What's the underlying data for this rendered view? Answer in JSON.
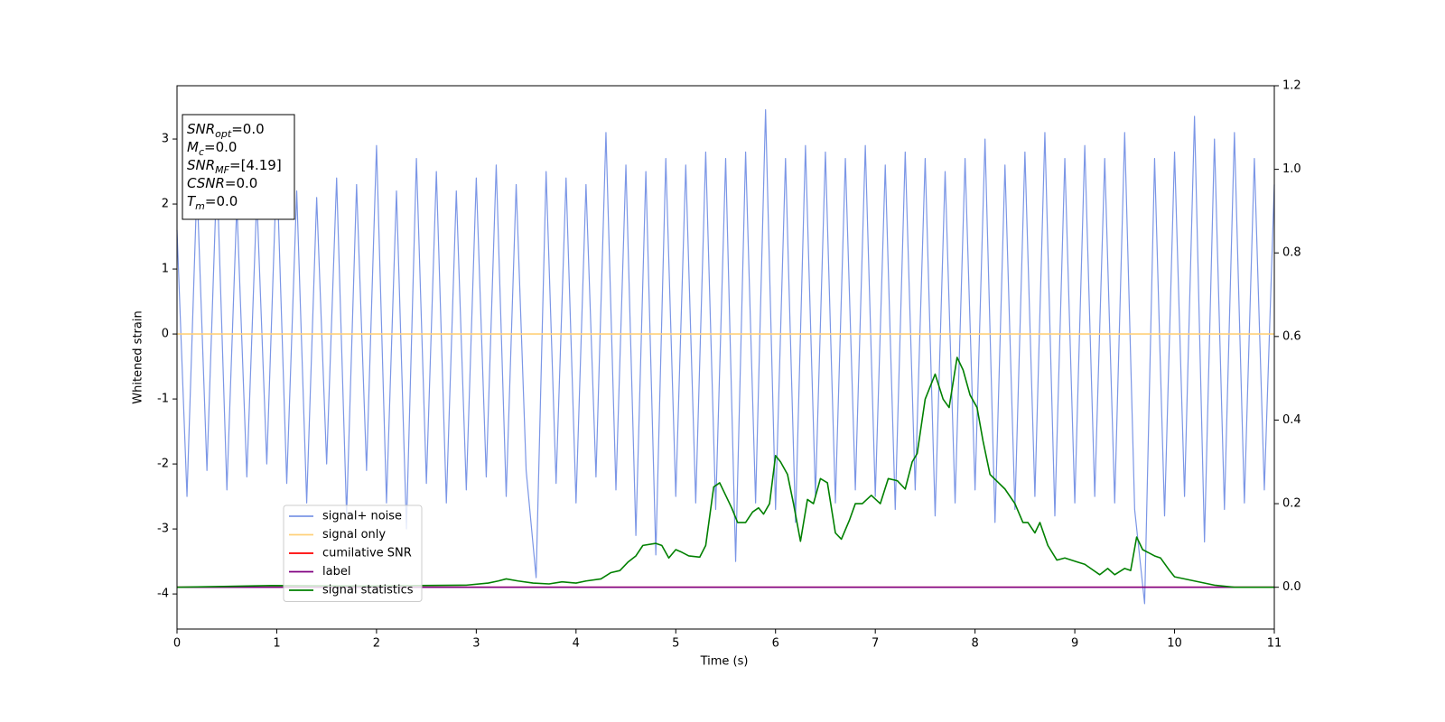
{
  "chart_data": {
    "type": "line",
    "xlabel": "Time (s)",
    "ylabel": "Whitened strain",
    "xlim": [
      0,
      11
    ],
    "xticks": [
      0,
      1,
      2,
      3,
      4,
      5,
      6,
      7,
      8,
      9,
      10,
      11
    ],
    "ylim": [
      -4.54,
      3.82
    ],
    "yticks": [
      -4,
      -3,
      -2,
      -1,
      0,
      1,
      2,
      3
    ],
    "y2lim": [
      -0.1,
      1.2
    ],
    "y2ticks": [
      {
        "value": 0,
        "label": "0.0"
      },
      0.2,
      0.4,
      0.6,
      0.8,
      {
        "value": 1,
        "label": "1.0"
      },
      1.2
    ],
    "legend": "lower left",
    "annotations": [
      {
        "symbol": "SNR",
        "sub": "opt",
        "text": "=0.0"
      },
      {
        "symbol": "M",
        "sub": "c",
        "text": "=0.0"
      },
      {
        "symbol": "SNR",
        "sub": "MF",
        "text": "=[4.19]"
      },
      {
        "symbol": "CSNR",
        "sub": "",
        "text": "=0.0"
      },
      {
        "symbol": "T",
        "sub": "m",
        "text": "=0.0"
      }
    ],
    "series": [
      {
        "name": "signal+ noise",
        "color": "#7b96e6",
        "x": [
          0,
          0.1,
          0.2,
          0.3,
          0.4,
          0.5,
          0.6,
          0.7,
          0.8,
          0.9,
          1,
          1.1,
          1.2,
          1.3,
          1.4,
          1.5,
          1.6,
          1.7,
          1.8,
          1.9,
          2,
          2.1,
          2.2,
          2.3,
          2.4,
          2.5,
          2.6,
          2.7,
          2.8,
          2.9,
          3,
          3.1,
          3.2,
          3.3,
          3.4,
          3.5,
          3.6,
          3.7,
          3.8,
          3.9,
          4,
          4.1,
          4.2,
          4.3,
          4.4,
          4.5,
          4.6,
          4.7,
          4.8,
          4.9,
          5,
          5.1,
          5.2,
          5.3,
          5.4,
          5.5,
          5.6,
          5.7,
          5.8,
          5.9,
          6,
          6.1,
          6.2,
          6.3,
          6.4,
          6.5,
          6.6,
          6.7,
          6.8,
          6.9,
          7,
          7.1,
          7.2,
          7.3,
          7.4,
          7.5,
          7.6,
          7.7,
          7.8,
          7.9,
          8,
          8.1,
          8.2,
          8.3,
          8.4,
          8.5,
          8.6,
          8.7,
          8.8,
          8.9,
          9,
          9.1,
          9.2,
          9.3,
          9.4,
          9.5,
          9.6,
          9.7,
          9.8,
          9.9,
          10,
          10.1,
          10.2,
          10.3,
          10.4,
          10.5,
          10.6,
          10.7,
          10.8,
          10.9,
          11
        ],
        "values": [
          1.6,
          -2.5,
          2.3,
          -2.1,
          2.5,
          -2.4,
          2.0,
          -2.2,
          2.1,
          -2.0,
          2.6,
          -2.3,
          2.2,
          -2.6,
          2.1,
          -2.0,
          2.4,
          -2.8,
          2.3,
          -2.1,
          2.9,
          -2.6,
          2.2,
          -3.0,
          2.7,
          -2.3,
          2.5,
          -2.6,
          2.2,
          -2.4,
          2.4,
          -2.2,
          2.6,
          -2.5,
          2.3,
          -2.1,
          -3.75,
          2.5,
          -2.3,
          2.4,
          -2.6,
          2.3,
          -2.2,
          3.1,
          -2.4,
          2.6,
          -3.1,
          2.5,
          -3.4,
          2.7,
          -2.5,
          2.6,
          -2.6,
          2.8,
          -2.7,
          2.7,
          -3.5,
          2.8,
          -2.6,
          3.45,
          -2.7,
          2.7,
          -2.9,
          2.9,
          -2.5,
          2.8,
          -2.6,
          2.7,
          -2.4,
          2.9,
          -2.5,
          2.6,
          -2.7,
          2.8,
          -2.4,
          2.7,
          -2.8,
          2.5,
          -2.6,
          2.7,
          -2.4,
          3.0,
          -2.9,
          2.6,
          -2.7,
          2.8,
          -2.5,
          3.1,
          -2.8,
          2.7,
          -2.6,
          2.9,
          -2.5,
          2.7,
          -2.6,
          3.1,
          -2.7,
          -4.15,
          2.7,
          -2.8,
          2.8,
          -2.5,
          3.35,
          -3.2,
          3.0,
          -2.7,
          3.1,
          -2.6,
          2.7,
          -2.4,
          2.3
        ]
      },
      {
        "name": "signal only",
        "color": "#ffd07a",
        "x": [
          0,
          11
        ],
        "values": [
          0,
          0
        ]
      },
      {
        "name": "cumilative SNR",
        "color": "#ff0000",
        "axis": "y2",
        "x": [
          0,
          11
        ],
        "values": [
          0,
          0
        ]
      },
      {
        "name": "label",
        "color": "#800080",
        "axis": "y2",
        "x": [
          0,
          11
        ],
        "values": [
          0,
          0
        ]
      },
      {
        "name": "signal statistics",
        "color": "#008000",
        "axis": "y2",
        "x": [
          0,
          0.95,
          1.85,
          2.9,
          3.12,
          3.22,
          3.3,
          3.42,
          3.57,
          3.73,
          3.86,
          4.0,
          4.1,
          4.25,
          4.35,
          4.44,
          4.52,
          4.6,
          4.67,
          4.8,
          4.86,
          4.93,
          5.0,
          5.05,
          5.13,
          5.24,
          5.3,
          5.38,
          5.44,
          5.5,
          5.56,
          5.62,
          5.7,
          5.77,
          5.83,
          5.88,
          5.94,
          6.0,
          6.05,
          6.12,
          6.18,
          6.25,
          6.32,
          6.38,
          6.45,
          6.52,
          6.6,
          6.66,
          6.74,
          6.8,
          6.87,
          6.96,
          7.05,
          7.13,
          7.22,
          7.3,
          7.37,
          7.42,
          7.5,
          7.6,
          7.68,
          7.74,
          7.82,
          7.88,
          7.95,
          8.02,
          8.08,
          8.15,
          8.3,
          8.4,
          8.48,
          8.53,
          8.6,
          8.65,
          8.73,
          8.82,
          8.9,
          9.03,
          9.1,
          9.16,
          9.25,
          9.33,
          9.4,
          9.5,
          9.56,
          9.62,
          9.68,
          9.8,
          9.86,
          9.95,
          10.0,
          10.2,
          10.4,
          10.6,
          11
        ],
        "values": [
          0,
          0.004,
          0.003,
          0.005,
          0.01,
          0.015,
          0.02,
          0.015,
          0.01,
          0.008,
          0.013,
          0.01,
          0.015,
          0.02,
          0.035,
          0.04,
          0.06,
          0.075,
          0.1,
          0.105,
          0.1,
          0.07,
          0.09,
          0.085,
          0.075,
          0.072,
          0.1,
          0.24,
          0.25,
          0.22,
          0.19,
          0.155,
          0.155,
          0.18,
          0.19,
          0.175,
          0.2,
          0.315,
          0.3,
          0.27,
          0.2,
          0.11,
          0.21,
          0.2,
          0.26,
          0.25,
          0.13,
          0.115,
          0.16,
          0.2,
          0.2,
          0.22,
          0.2,
          0.26,
          0.255,
          0.235,
          0.3,
          0.32,
          0.45,
          0.51,
          0.45,
          0.43,
          0.55,
          0.52,
          0.46,
          0.43,
          0.35,
          0.27,
          0.235,
          0.2,
          0.155,
          0.155,
          0.13,
          0.155,
          0.1,
          0.065,
          0.07,
          0.06,
          0.055,
          0.045,
          0.03,
          0.045,
          0.03,
          0.045,
          0.04,
          0.12,
          0.09,
          0.075,
          0.07,
          0.04,
          0.025,
          0.015,
          0.005,
          0,
          0
        ]
      }
    ]
  }
}
